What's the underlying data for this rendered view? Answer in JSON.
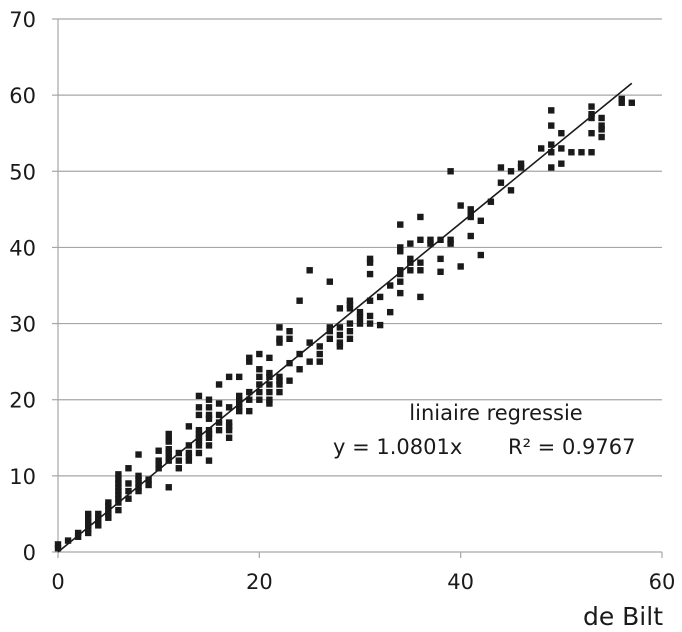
{
  "chart_data": {
    "type": "scatter",
    "title": "",
    "xlabel": "de Bilt",
    "ylabel": "",
    "xlim": [
      0,
      60
    ],
    "ylim": [
      0,
      70
    ],
    "x_ticks": [
      "0",
      "20",
      "40",
      "60"
    ],
    "y_ticks": [
      "0",
      "10",
      "20",
      "30",
      "40",
      "50",
      "60",
      "70"
    ],
    "grid": "horizontal",
    "marker_color": "#1a1a1a",
    "line_color": "#1a1a1a",
    "grid_color": "#a6a6a6",
    "annotation": {
      "title": "liniaire regressie",
      "equation": "y = 1.0801x",
      "r_squared": "R² = 0.9767"
    },
    "trendline": {
      "slope": 1.0801,
      "x_range": [
        0,
        57
      ]
    },
    "series": [
      {
        "points": [
          [
            0,
            0.5
          ],
          [
            0,
            1
          ],
          [
            1,
            1.5
          ],
          [
            2,
            2
          ],
          [
            2,
            2.5
          ],
          [
            3,
            2.5
          ],
          [
            3,
            3
          ],
          [
            3,
            3.5
          ],
          [
            3,
            4
          ],
          [
            3,
            4.5
          ],
          [
            3,
            5
          ],
          [
            4,
            3.5
          ],
          [
            4,
            4
          ],
          [
            4,
            4.5
          ],
          [
            4,
            5
          ],
          [
            5,
            4.5
          ],
          [
            5,
            5
          ],
          [
            5,
            5.5
          ],
          [
            5,
            6
          ],
          [
            5,
            6.5
          ],
          [
            6,
            5.5
          ],
          [
            6,
            6.5
          ],
          [
            6,
            7
          ],
          [
            6,
            7.5
          ],
          [
            6,
            8
          ],
          [
            6,
            8.5
          ],
          [
            6,
            9
          ],
          [
            6,
            9.5
          ],
          [
            6,
            10.2
          ],
          [
            7,
            7
          ],
          [
            7,
            8
          ],
          [
            7,
            9
          ],
          [
            7,
            11
          ],
          [
            8,
            8
          ],
          [
            8,
            8.5
          ],
          [
            8,
            9
          ],
          [
            8,
            9.5
          ],
          [
            8,
            10
          ],
          [
            8,
            12.8
          ],
          [
            9,
            8.8
          ],
          [
            9,
            9.5
          ],
          [
            10,
            11
          ],
          [
            10,
            11.5
          ],
          [
            10,
            12
          ],
          [
            10,
            13.3
          ],
          [
            11,
            8.5
          ],
          [
            11,
            12
          ],
          [
            11,
            12.5
          ],
          [
            11,
            13
          ],
          [
            11,
            13.5
          ],
          [
            11,
            14.5
          ],
          [
            11,
            15
          ],
          [
            11,
            15.5
          ],
          [
            12,
            11
          ],
          [
            12,
            12
          ],
          [
            12,
            13
          ],
          [
            13,
            12
          ],
          [
            13,
            12.5
          ],
          [
            13,
            13
          ],
          [
            13,
            14
          ],
          [
            13,
            16.5
          ],
          [
            14,
            13
          ],
          [
            14,
            14
          ],
          [
            14,
            14.5
          ],
          [
            14,
            15
          ],
          [
            14,
            15.5
          ],
          [
            14,
            16
          ],
          [
            14,
            18
          ],
          [
            14,
            19
          ],
          [
            14,
            20.5
          ],
          [
            15,
            12
          ],
          [
            15,
            14
          ],
          [
            15,
            15
          ],
          [
            15,
            15.5
          ],
          [
            15,
            16
          ],
          [
            15,
            17.5
          ],
          [
            15,
            18
          ],
          [
            15,
            19
          ],
          [
            15,
            20
          ],
          [
            16,
            16
          ],
          [
            16,
            17
          ],
          [
            16,
            18
          ],
          [
            16,
            19.5
          ],
          [
            16,
            22
          ],
          [
            17,
            15
          ],
          [
            17,
            16
          ],
          [
            17,
            16.5
          ],
          [
            17,
            17
          ],
          [
            17,
            19
          ],
          [
            17,
            23
          ],
          [
            18,
            18.5
          ],
          [
            18,
            19
          ],
          [
            18,
            19.5
          ],
          [
            18,
            20
          ],
          [
            18,
            20.5
          ],
          [
            18,
            23
          ],
          [
            19,
            18.5
          ],
          [
            19,
            20
          ],
          [
            19,
            21
          ],
          [
            19,
            25
          ],
          [
            19,
            25.5
          ],
          [
            20,
            20
          ],
          [
            20,
            21
          ],
          [
            20,
            22
          ],
          [
            20,
            23
          ],
          [
            20,
            24
          ],
          [
            20,
            26
          ],
          [
            21,
            19.5
          ],
          [
            21,
            20
          ],
          [
            21,
            21
          ],
          [
            21,
            22
          ],
          [
            21,
            23
          ],
          [
            21,
            23.5
          ],
          [
            21,
            25.5
          ],
          [
            22,
            21
          ],
          [
            22,
            22
          ],
          [
            22,
            22.5
          ],
          [
            22,
            23
          ],
          [
            22,
            27.5
          ],
          [
            22,
            28
          ],
          [
            22,
            29.5
          ],
          [
            23,
            22.5
          ],
          [
            23,
            24.8
          ],
          [
            23,
            28
          ],
          [
            23,
            29
          ],
          [
            24,
            24
          ],
          [
            24,
            26
          ],
          [
            24,
            33
          ],
          [
            25,
            25
          ],
          [
            25,
            27.5
          ],
          [
            25,
            37
          ],
          [
            26,
            25
          ],
          [
            26,
            26
          ],
          [
            26,
            27
          ],
          [
            27,
            28
          ],
          [
            27,
            29
          ],
          [
            27,
            29.5
          ],
          [
            27,
            35.5
          ],
          [
            28,
            27
          ],
          [
            28,
            27.5
          ],
          [
            28,
            28.5
          ],
          [
            28,
            29.5
          ],
          [
            28,
            32
          ],
          [
            29,
            28
          ],
          [
            29,
            29
          ],
          [
            29,
            30
          ],
          [
            29,
            32
          ],
          [
            29,
            32.5
          ],
          [
            29,
            33
          ],
          [
            30,
            30
          ],
          [
            30,
            30.8
          ],
          [
            30,
            31.5
          ],
          [
            31,
            30
          ],
          [
            31,
            31
          ],
          [
            31,
            33
          ],
          [
            31,
            36.5
          ],
          [
            31,
            38
          ],
          [
            31,
            38.5
          ],
          [
            32,
            29.8
          ],
          [
            32,
            33.5
          ],
          [
            33,
            31.5
          ],
          [
            33,
            35
          ],
          [
            34,
            34
          ],
          [
            34,
            35.5
          ],
          [
            34,
            36.5
          ],
          [
            34,
            37
          ],
          [
            34,
            39.5
          ],
          [
            34,
            40
          ],
          [
            34,
            43
          ],
          [
            35,
            37
          ],
          [
            35,
            38
          ],
          [
            35,
            38.5
          ],
          [
            35,
            40.5
          ],
          [
            36,
            33.5
          ],
          [
            36,
            37
          ],
          [
            36,
            38
          ],
          [
            36,
            41
          ],
          [
            36,
            44
          ],
          [
            37,
            40.5
          ],
          [
            37,
            41
          ],
          [
            38,
            36.8
          ],
          [
            38,
            38.5
          ],
          [
            38,
            41
          ],
          [
            39,
            40.5
          ],
          [
            39,
            41
          ],
          [
            39,
            50
          ],
          [
            40,
            37.5
          ],
          [
            40,
            45.5
          ],
          [
            41,
            41.5
          ],
          [
            41,
            44
          ],
          [
            41,
            44.5
          ],
          [
            41,
            45
          ],
          [
            42,
            39
          ],
          [
            42,
            43.5
          ],
          [
            43,
            46
          ],
          [
            44,
            48.5
          ],
          [
            44,
            50.5
          ],
          [
            45,
            47.5
          ],
          [
            45,
            50
          ],
          [
            46,
            50.5
          ],
          [
            46,
            51
          ],
          [
            48,
            53
          ],
          [
            49,
            50.5
          ],
          [
            49,
            52.5
          ],
          [
            49,
            53.5
          ],
          [
            49,
            56
          ],
          [
            49,
            58
          ],
          [
            50,
            51
          ],
          [
            50,
            53
          ],
          [
            50,
            55
          ],
          [
            51,
            52.5
          ],
          [
            52,
            52.5
          ],
          [
            53,
            52.5
          ],
          [
            53,
            55
          ],
          [
            53,
            57
          ],
          [
            53,
            57.5
          ],
          [
            53,
            58.5
          ],
          [
            54,
            54.5
          ],
          [
            54,
            55.5
          ],
          [
            54,
            56
          ],
          [
            54,
            57
          ],
          [
            56,
            59
          ],
          [
            56,
            59.5
          ],
          [
            57,
            59
          ]
        ]
      }
    ]
  }
}
